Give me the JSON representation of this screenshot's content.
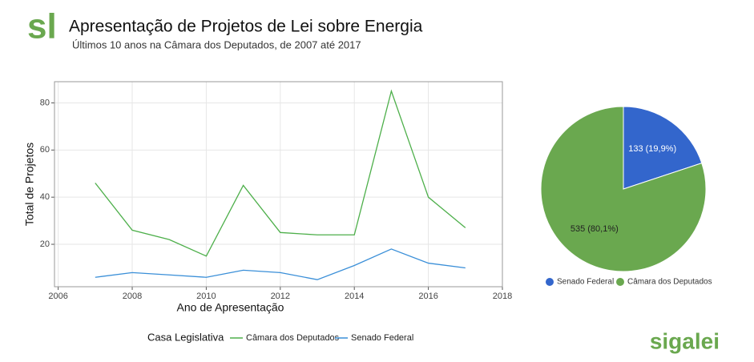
{
  "header": {
    "logo": "sl",
    "title": "Apresentação de Projetos de Lei sobre Energia",
    "subtitle": "Últimos 10 anos na Câmara dos Deputados, de 2007 até 2017"
  },
  "footer": {
    "logo": "sigalei"
  },
  "chart_data": [
    {
      "type": "line",
      "x_label": "Ano de Apresentação",
      "y_label": "Total de Projetos",
      "x": [
        2007,
        2008,
        2009,
        2010,
        2011,
        2012,
        2013,
        2014,
        2015,
        2016,
        2017
      ],
      "series": [
        {
          "name": "Câmara dos Deputados",
          "color": "#4daf4a",
          "values": [
            46,
            26,
            22,
            15,
            45,
            25,
            24,
            24,
            85,
            40,
            27
          ]
        },
        {
          "name": "Senado Federal",
          "color": "#3a8fd8",
          "values": [
            6,
            8,
            7,
            6,
            9,
            8,
            5,
            11,
            18,
            12,
            10
          ]
        }
      ],
      "xlim": [
        2005.9,
        2018
      ],
      "xticks": [
        2006,
        2008,
        2010,
        2012,
        2014,
        2016,
        2018
      ],
      "ylim": [
        2,
        89
      ],
      "yticks": [
        20,
        40,
        60,
        80
      ],
      "grid": true,
      "legend_title": "Casa Legislativa",
      "legend": "bottom"
    },
    {
      "type": "pie",
      "categories": [
        "Senado Federal",
        "Câmara dos Deputados"
      ],
      "values": [
        133,
        535
      ],
      "value_labels": [
        "133 (19,9%)",
        "535 (80,1%)"
      ],
      "colors": [
        "#3366cc",
        "#6aa84f"
      ],
      "label_colors": [
        "#ffffff",
        "#222222"
      ],
      "legend": "bottom"
    }
  ]
}
